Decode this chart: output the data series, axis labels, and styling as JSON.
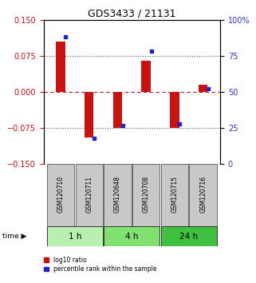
{
  "title": "GDS3433 / 21131",
  "samples": [
    "GSM120710",
    "GSM120711",
    "GSM120648",
    "GSM120708",
    "GSM120715",
    "GSM120716"
  ],
  "log10_ratio": [
    0.105,
    -0.095,
    -0.075,
    0.065,
    -0.075,
    0.015
  ],
  "percentile_rank": [
    88,
    18,
    27,
    78,
    28,
    52
  ],
  "groups": [
    {
      "label": "1 h",
      "samples": [
        0,
        1
      ],
      "color": "#b8f0b0"
    },
    {
      "label": "4 h",
      "samples": [
        2,
        3
      ],
      "color": "#80e070"
    },
    {
      "label": "24 h",
      "samples": [
        4,
        5
      ],
      "color": "#40c040"
    }
  ],
  "ylim_left": [
    -0.15,
    0.15
  ],
  "ylim_right": [
    0,
    100
  ],
  "yticks_left": [
    -0.15,
    -0.075,
    0,
    0.075,
    0.15
  ],
  "yticks_right": [
    0,
    25,
    50,
    75,
    100
  ],
  "bar_color_red": "#cc1111",
  "bar_color_blue": "#2222cc",
  "zero_line_color": "#cc1111",
  "dotted_line_color": "#555555",
  "background_color": "#ffffff",
  "plot_bg": "#ffffff",
  "label_log10": "log10 ratio",
  "label_pct": "percentile rank within the sample",
  "sample_box_color": "#c8c8c8",
  "figsize": [
    3.21,
    3.54
  ],
  "dpi": 100
}
